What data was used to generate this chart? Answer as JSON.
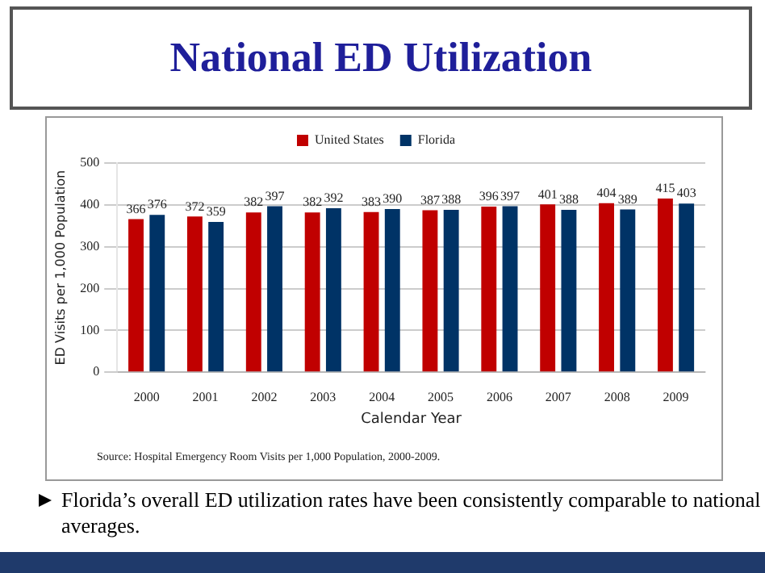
{
  "chart_data": {
    "type": "bar",
    "title": "National ED Utilization",
    "xlabel": "Calendar Year",
    "ylabel": "ED Visits per 1,000 Population",
    "categories": [
      "2000",
      "2001",
      "2002",
      "2003",
      "2004",
      "2005",
      "2006",
      "2007",
      "2008",
      "2009"
    ],
    "series": [
      {
        "name": "United States",
        "color": "#c00000",
        "values": [
          366,
          372,
          382,
          382,
          383,
          387,
          396,
          401,
          404,
          415
        ]
      },
      {
        "name": "Florida",
        "color": "#003366",
        "values": [
          376,
          359,
          397,
          392,
          390,
          388,
          397,
          388,
          389,
          403
        ]
      }
    ],
    "ylim": [
      0,
      500
    ],
    "yticks": [
      0,
      100,
      200,
      300,
      400,
      500
    ],
    "grid": "y",
    "legend": "top",
    "data_labels": true,
    "annotations": [
      "Source: Hospital Emergency Room Visits per 1,000 Population, 2000-2009.",
      "Florida’s overall ED utilization rates have been consistently comparable to national averages."
    ]
  }
}
